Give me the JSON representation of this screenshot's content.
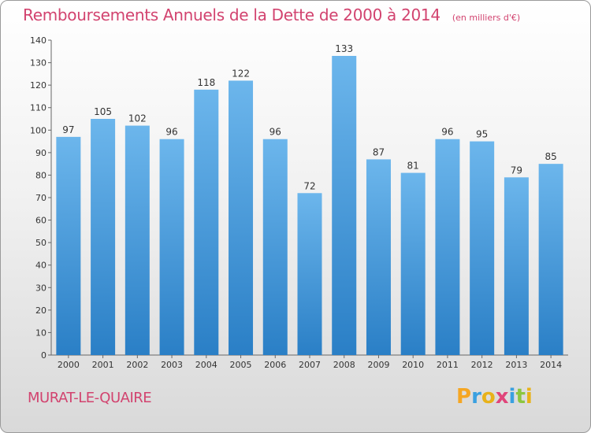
{
  "chart_data": {
    "type": "bar",
    "title": "Remboursements Annuels de la Dette de 2000 à 2014",
    "unit": "(en milliers d'€)",
    "categories": [
      "2000",
      "2001",
      "2002",
      "2003",
      "2004",
      "2005",
      "2006",
      "2007",
      "2008",
      "2009",
      "2010",
      "2011",
      "2012",
      "2013",
      "2014"
    ],
    "values": [
      97,
      105,
      102,
      96,
      118,
      122,
      96,
      72,
      133,
      87,
      81,
      96,
      95,
      79,
      85
    ],
    "ylim": [
      0,
      140
    ],
    "yticks": [
      0,
      10,
      20,
      30,
      40,
      50,
      60,
      70,
      80,
      90,
      100,
      110,
      120,
      130,
      140
    ],
    "grid": false,
    "xlabel": "",
    "ylabel": ""
  },
  "commune": "MURAT-LE-QUAIRE",
  "logo": {
    "letters": [
      "P",
      "r",
      "o",
      "x",
      "i",
      "t",
      "i"
    ],
    "colors": [
      "#f5a623",
      "#3aa0e0",
      "#e8b21a",
      "#e0457a",
      "#3aa0e0",
      "#8cc63f",
      "#e8b21a"
    ]
  },
  "colors": {
    "bar_top": "#6cb6ec",
    "bar_bottom": "#2a7fc6",
    "accent": "#d2436f"
  }
}
